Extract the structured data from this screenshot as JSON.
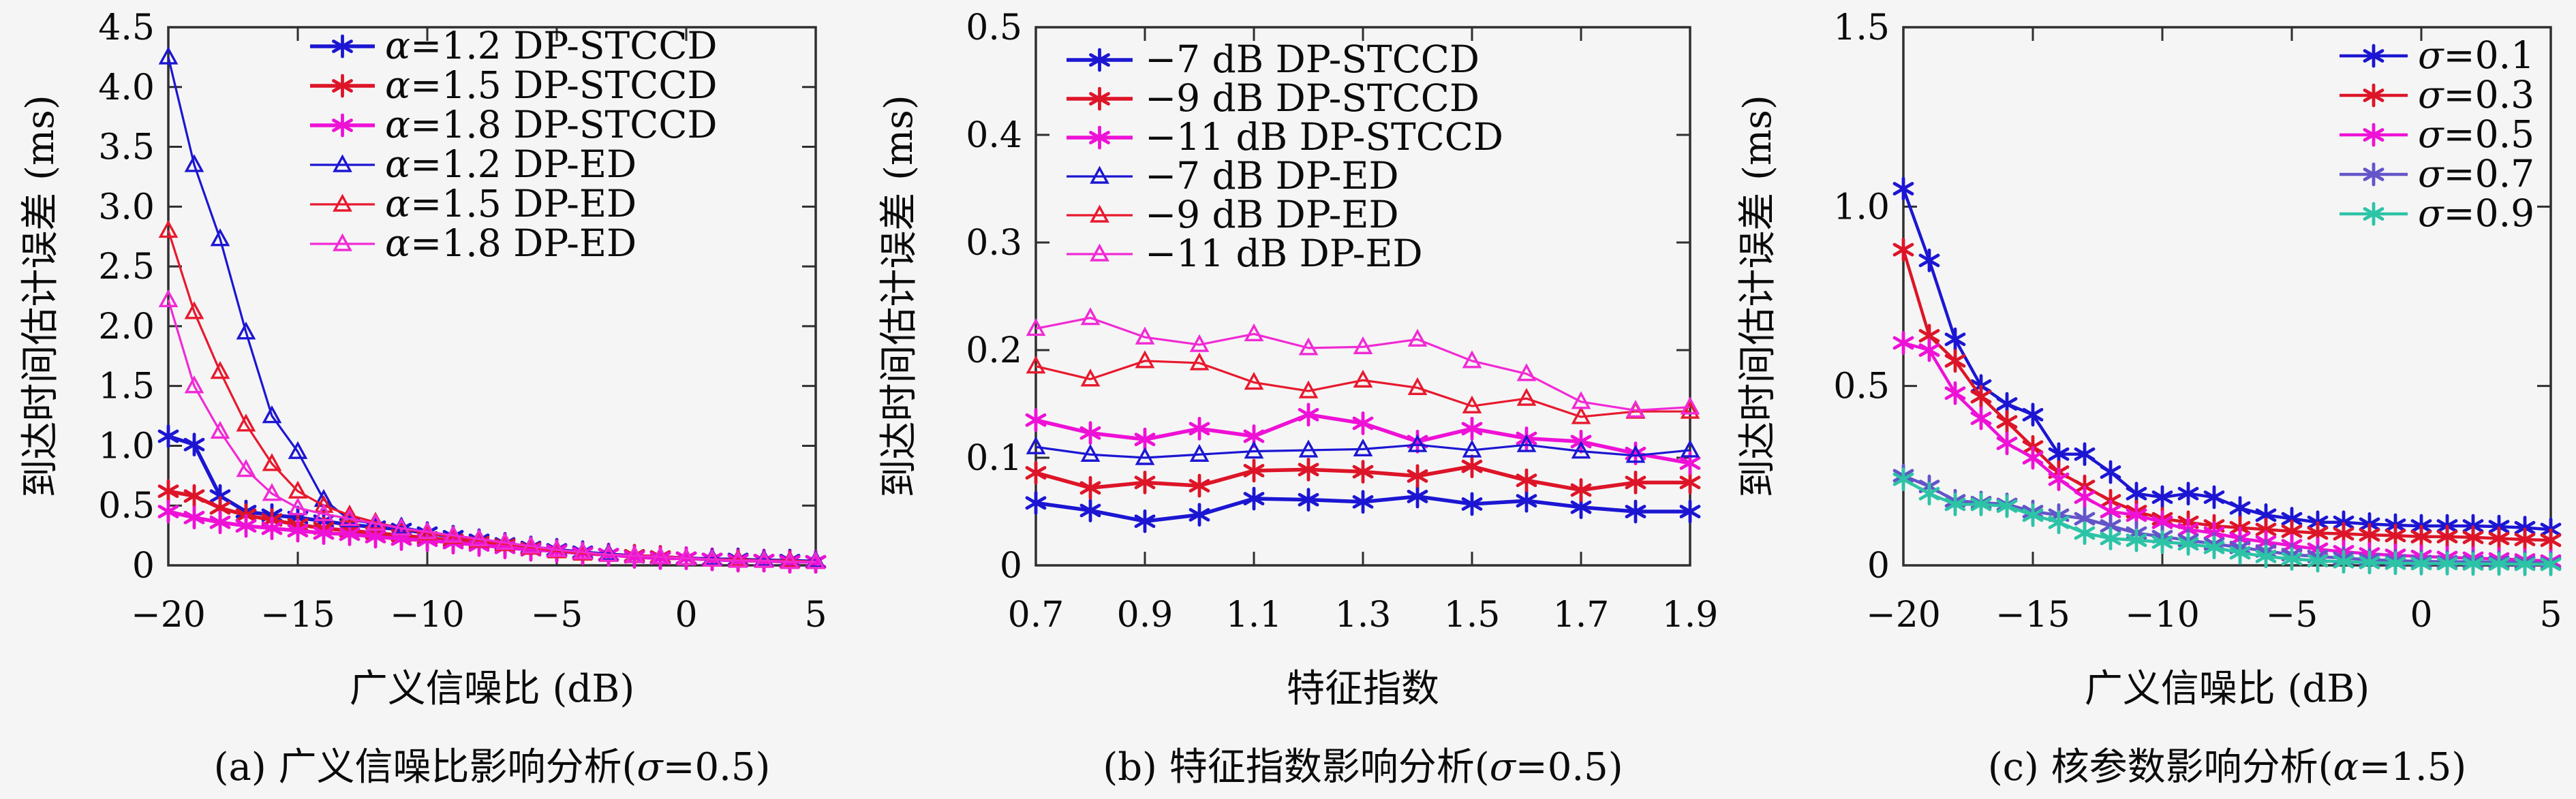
{
  "page": {
    "background": "#f5f5f6",
    "text_color": "#0b0b0b",
    "axis_color": "#2f2f2f"
  },
  "chart_data": [
    {
      "type": "line",
      "panel": "a",
      "caption": "(a) 广义信噪比影响分析(σ=0.5)",
      "xlabel": "广义信噪比 (dB)",
      "ylabel": "到达时间估计误差 (ms)",
      "xlim": [
        -20,
        5
      ],
      "ylim": [
        0,
        4.5
      ],
      "xticks": [
        -20,
        -15,
        -10,
        -5,
        0,
        5
      ],
      "xtick_labels": [
        "−20",
        "−15",
        "−10",
        "−5",
        "0",
        "5"
      ],
      "yticks": [
        0,
        0.5,
        1,
        1.5,
        2,
        2.5,
        3,
        3.5,
        4,
        4.5
      ],
      "ytick_labels": [
        "0",
        "0.5",
        "1.0",
        "1.5",
        "2.0",
        "2.5",
        "3.0",
        "3.5",
        "4.0",
        "4.5"
      ],
      "grid": false,
      "legend_position": "top-left-inside",
      "x": [
        -20,
        -19,
        -18,
        -17,
        -16,
        -15,
        -14,
        -13,
        -12,
        -11,
        -10,
        -9,
        -8,
        -7,
        -6,
        -5,
        -4,
        -3,
        -2,
        -1,
        0,
        1,
        2,
        3,
        4,
        5
      ],
      "series": [
        {
          "name": "α=1.2 DP-STCCD",
          "color": "#1c16d2",
          "marker": "asterisk",
          "line_width": 5.5,
          "values": [
            1.08,
            1.01,
            0.58,
            0.45,
            0.42,
            0.4,
            0.37,
            0.34,
            0.32,
            0.3,
            0.27,
            0.24,
            0.21,
            0.18,
            0.15,
            0.13,
            0.11,
            0.09,
            0.08,
            0.07,
            0.06,
            0.05,
            0.05,
            0.04,
            0.04,
            0.03
          ]
        },
        {
          "name": "α=1.5 DP-STCCD",
          "color": "#dd1528",
          "marker": "asterisk",
          "line_width": 5.5,
          "values": [
            0.62,
            0.58,
            0.48,
            0.42,
            0.38,
            0.34,
            0.31,
            0.29,
            0.27,
            0.25,
            0.23,
            0.21,
            0.19,
            0.17,
            0.14,
            0.12,
            0.1,
            0.09,
            0.08,
            0.07,
            0.06,
            0.05,
            0.04,
            0.04,
            0.03,
            0.03
          ]
        },
        {
          "name": "α=1.8 DP-STCCD",
          "color": "#ee11d6",
          "marker": "asterisk",
          "line_width": 5.5,
          "values": [
            0.45,
            0.4,
            0.36,
            0.33,
            0.31,
            0.29,
            0.27,
            0.26,
            0.24,
            0.22,
            0.21,
            0.19,
            0.17,
            0.15,
            0.13,
            0.12,
            0.1,
            0.09,
            0.07,
            0.06,
            0.06,
            0.05,
            0.04,
            0.04,
            0.03,
            0.03
          ]
        },
        {
          "name": "α=1.2 DP-ED",
          "color": "#1c16d2",
          "marker": "triangle",
          "line_width": 3.2,
          "values": [
            4.25,
            3.35,
            2.73,
            1.95,
            1.25,
            0.95,
            0.55,
            0.38,
            0.35,
            0.32,
            0.28,
            0.25,
            0.22,
            0.19,
            0.16,
            0.13,
            0.11,
            0.1,
            0.08,
            0.07,
            0.06,
            0.06,
            0.05,
            0.05,
            0.04,
            0.04
          ]
        },
        {
          "name": "α=1.5 DP-ED",
          "color": "#e8192d",
          "marker": "triangle",
          "line_width": 3.2,
          "values": [
            2.8,
            2.12,
            1.62,
            1.18,
            0.85,
            0.62,
            0.5,
            0.42,
            0.36,
            0.31,
            0.27,
            0.24,
            0.21,
            0.18,
            0.15,
            0.12,
            0.1,
            0.09,
            0.08,
            0.07,
            0.06,
            0.05,
            0.05,
            0.04,
            0.04,
            0.03
          ]
        },
        {
          "name": "α=1.8 DP-ED",
          "color": "#f12ad4",
          "marker": "triangle",
          "line_width": 3.2,
          "values": [
            2.22,
            1.5,
            1.12,
            0.8,
            0.6,
            0.48,
            0.43,
            0.39,
            0.35,
            0.31,
            0.28,
            0.25,
            0.22,
            0.19,
            0.16,
            0.13,
            0.11,
            0.09,
            0.08,
            0.07,
            0.06,
            0.05,
            0.04,
            0.04,
            0.03,
            0.03
          ]
        }
      ]
    },
    {
      "type": "line",
      "panel": "b",
      "caption": "(b) 特征指数影响分析(σ=0.5)",
      "xlabel": "特征指数",
      "ylabel": "到达时间估计误差 (ms)",
      "xlim": [
        0.7,
        1.9
      ],
      "ylim": [
        0,
        0.5
      ],
      "xticks": [
        0.7,
        0.9,
        1.1,
        1.3,
        1.5,
        1.7,
        1.9
      ],
      "xtick_labels": [
        "0.7",
        "0.9",
        "1.1",
        "1.3",
        "1.5",
        "1.7",
        "1.9"
      ],
      "yticks": [
        0,
        0.1,
        0.2,
        0.3,
        0.4,
        0.5
      ],
      "ytick_labels": [
        "0",
        "0.1",
        "0.2",
        "0.3",
        "0.4",
        "0.5"
      ],
      "grid": false,
      "legend_position": "top-left-inside",
      "x": [
        0.7,
        0.8,
        0.9,
        1.0,
        1.1,
        1.2,
        1.3,
        1.4,
        1.5,
        1.6,
        1.7,
        1.8,
        1.9
      ],
      "series": [
        {
          "name": "−7 dB DP-STCCD",
          "color": "#1c16d2",
          "marker": "asterisk",
          "line_width": 5.5,
          "values": [
            0.058,
            0.051,
            0.041,
            0.047,
            0.062,
            0.061,
            0.059,
            0.064,
            0.057,
            0.06,
            0.054,
            0.05,
            0.05
          ]
        },
        {
          "name": "−9 dB DP-STCCD",
          "color": "#dd1528",
          "marker": "asterisk",
          "line_width": 5.5,
          "values": [
            0.086,
            0.072,
            0.077,
            0.074,
            0.088,
            0.089,
            0.087,
            0.083,
            0.092,
            0.079,
            0.07,
            0.077,
            0.077
          ]
        },
        {
          "name": "−11 dB DP-STCCD",
          "color": "#ee11d6",
          "marker": "asterisk",
          "line_width": 5.5,
          "values": [
            0.135,
            0.123,
            0.117,
            0.127,
            0.12,
            0.14,
            0.132,
            0.115,
            0.127,
            0.118,
            0.115,
            0.104,
            0.095
          ]
        },
        {
          "name": "−7 dB DP-ED",
          "color": "#1c16d2",
          "marker": "triangle",
          "line_width": 3.2,
          "values": [
            0.11,
            0.103,
            0.1,
            0.103,
            0.106,
            0.107,
            0.108,
            0.112,
            0.107,
            0.112,
            0.106,
            0.102,
            0.107
          ]
        },
        {
          "name": "−9 dB DP-ED",
          "color": "#e8192d",
          "marker": "triangle",
          "line_width": 3.2,
          "values": [
            0.185,
            0.173,
            0.19,
            0.188,
            0.17,
            0.162,
            0.172,
            0.165,
            0.148,
            0.155,
            0.138,
            0.143,
            0.143
          ]
        },
        {
          "name": "−11 dB DP-ED",
          "color": "#f12ad4",
          "marker": "triangle",
          "line_width": 3.2,
          "values": [
            0.22,
            0.23,
            0.212,
            0.205,
            0.215,
            0.202,
            0.203,
            0.21,
            0.19,
            0.178,
            0.152,
            0.144,
            0.147
          ]
        }
      ]
    },
    {
      "type": "line",
      "panel": "c",
      "caption": "(c) 核参数影响分析(α=1.5)",
      "xlabel": "广义信噪比 (dB)",
      "ylabel": "到达时间估计误差 (ms)",
      "xlim": [
        -20,
        5
      ],
      "ylim": [
        0,
        1.5
      ],
      "xticks": [
        -20,
        -15,
        -10,
        -5,
        0,
        5
      ],
      "xtick_labels": [
        "−20",
        "−15",
        "−10",
        "−5",
        "0",
        "5"
      ],
      "yticks": [
        0,
        0.5,
        1,
        1.5
      ],
      "ytick_labels": [
        "0",
        "0.5",
        "1.0",
        "1.5"
      ],
      "grid": false,
      "legend_position": "top-right-inside",
      "x": [
        -20,
        -19,
        -18,
        -17,
        -16,
        -15,
        -14,
        -13,
        -12,
        -11,
        -10,
        -9,
        -8,
        -7,
        -6,
        -5,
        -4,
        -3,
        -2,
        -1,
        0,
        1,
        2,
        3,
        4,
        5
      ],
      "series": [
        {
          "name": "σ=0.1",
          "color": "#1c16d2",
          "marker": "asterisk",
          "line_width": 4.5,
          "values": [
            1.05,
            0.85,
            0.63,
            0.5,
            0.45,
            0.42,
            0.31,
            0.31,
            0.26,
            0.2,
            0.19,
            0.2,
            0.19,
            0.16,
            0.14,
            0.13,
            0.12,
            0.12,
            0.115,
            0.112,
            0.11,
            0.11,
            0.11,
            0.108,
            0.105,
            0.1
          ]
        },
        {
          "name": "σ=0.3",
          "color": "#dd1528",
          "marker": "asterisk",
          "line_width": 4.5,
          "values": [
            0.88,
            0.64,
            0.57,
            0.47,
            0.4,
            0.33,
            0.26,
            0.22,
            0.18,
            0.15,
            0.13,
            0.12,
            0.11,
            0.105,
            0.1,
            0.095,
            0.09,
            0.088,
            0.085,
            0.083,
            0.08,
            0.08,
            0.078,
            0.075,
            0.072,
            0.07
          ]
        },
        {
          "name": "σ=0.5",
          "color": "#ee11d6",
          "marker": "asterisk",
          "line_width": 4.5,
          "values": [
            0.62,
            0.6,
            0.48,
            0.41,
            0.34,
            0.3,
            0.24,
            0.19,
            0.15,
            0.14,
            0.12,
            0.1,
            0.09,
            0.075,
            0.065,
            0.055,
            0.045,
            0.038,
            0.032,
            0.028,
            0.025,
            0.022,
            0.02,
            0.018,
            0.015,
            0.012
          ]
        },
        {
          "name": "σ=0.7",
          "color": "#6355c8",
          "marker": "asterisk",
          "line_width": 4.5,
          "values": [
            0.25,
            0.22,
            0.18,
            0.175,
            0.17,
            0.15,
            0.14,
            0.13,
            0.11,
            0.09,
            0.08,
            0.07,
            0.06,
            0.05,
            0.04,
            0.03,
            0.025,
            0.02,
            0.016,
            0.013,
            0.011,
            0.01,
            0.01,
            0.009,
            0.008,
            0.006
          ]
        },
        {
          "name": "σ=0.9",
          "color": "#2dc3a6",
          "marker": "asterisk",
          "line_width": 4.5,
          "values": [
            0.24,
            0.2,
            0.17,
            0.17,
            0.165,
            0.14,
            0.12,
            0.09,
            0.075,
            0.07,
            0.065,
            0.06,
            0.05,
            0.035,
            0.025,
            0.018,
            0.013,
            0.01,
            0.008,
            0.006,
            0.005,
            0.005,
            0.004,
            0.004,
            0.003,
            0.003
          ]
        }
      ]
    }
  ]
}
